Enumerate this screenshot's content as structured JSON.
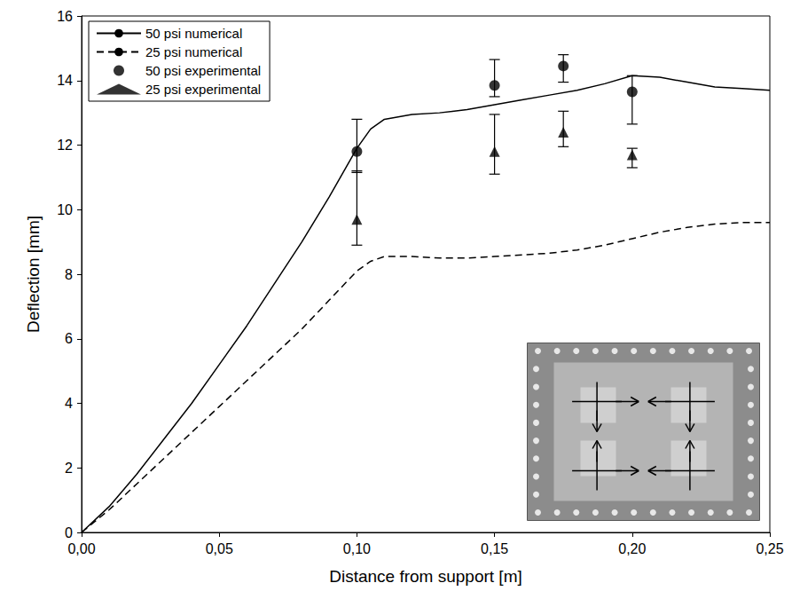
{
  "chart_data": {
    "type": "line",
    "x_label": "Distance from support [m]",
    "y_label": "Deflection [mm]",
    "xlim": [
      0,
      0.25
    ],
    "xticks": [
      {
        "value": 0,
        "label": "0,00"
      },
      {
        "value": 0.05,
        "label": "0,05"
      },
      {
        "value": 0.1,
        "label": "0,10"
      },
      {
        "value": 0.15,
        "label": "0,15"
      },
      {
        "value": 0.2,
        "label": "0,20"
      },
      {
        "value": 0.25,
        "label": "0,25"
      }
    ],
    "ylim": [
      0,
      16
    ],
    "yticks": [
      0,
      2,
      4,
      6,
      8,
      10,
      12,
      14,
      16
    ],
    "grid": false,
    "legend": "upper left",
    "series": [
      {
        "name": "50 psi numerical",
        "type": "line",
        "line_style": "solid",
        "color": "#000000",
        "x": [
          0,
          0.01,
          0.02,
          0.03,
          0.04,
          0.05,
          0.06,
          0.07,
          0.08,
          0.09,
          0.1,
          0.105,
          0.11,
          0.12,
          0.13,
          0.14,
          0.15,
          0.16,
          0.17,
          0.18,
          0.19,
          0.2,
          0.21,
          0.22,
          0.23,
          0.24,
          0.25
        ],
        "values": [
          0,
          0.8,
          1.8,
          2.9,
          4.0,
          5.2,
          6.4,
          7.7,
          9.0,
          10.4,
          11.9,
          12.5,
          12.8,
          12.95,
          13.0,
          13.1,
          13.25,
          13.4,
          13.55,
          13.7,
          13.9,
          14.15,
          14.1,
          13.95,
          13.8,
          13.75,
          13.7
        ]
      },
      {
        "name": "25 psi numerical",
        "type": "line",
        "line_style": "dashed",
        "color": "#000000",
        "x": [
          0,
          0.01,
          0.02,
          0.03,
          0.04,
          0.05,
          0.06,
          0.07,
          0.08,
          0.09,
          0.1,
          0.105,
          0.11,
          0.12,
          0.13,
          0.14,
          0.15,
          0.16,
          0.17,
          0.18,
          0.19,
          0.2,
          0.21,
          0.22,
          0.23,
          0.24,
          0.25
        ],
        "values": [
          0,
          0.7,
          1.5,
          2.3,
          3.1,
          3.9,
          4.7,
          5.5,
          6.3,
          7.2,
          8.1,
          8.4,
          8.55,
          8.55,
          8.5,
          8.5,
          8.55,
          8.6,
          8.65,
          8.75,
          8.9,
          9.1,
          9.3,
          9.45,
          9.55,
          9.6,
          9.6
        ]
      },
      {
        "name": "50 psi experimental",
        "type": "scatter",
        "marker": "circle",
        "color": "#000000",
        "x": [
          0.1,
          0.15,
          0.175,
          0.2
        ],
        "values": [
          11.8,
          13.85,
          14.45,
          13.65
        ],
        "error_low": [
          11.15,
          13.5,
          13.95,
          12.65
        ],
        "error_high": [
          12.8,
          14.65,
          14.8,
          14.15
        ]
      },
      {
        "name": "25 psi experimental",
        "type": "scatter",
        "marker": "triangle",
        "color": "#000000",
        "x": [
          0.1,
          0.15,
          0.175,
          0.2
        ],
        "values": [
          9.7,
          11.8,
          12.4,
          11.7
        ],
        "error_low": [
          8.9,
          11.1,
          11.95,
          11.3
        ],
        "error_high": [
          11.2,
          12.95,
          13.05,
          11.9
        ]
      }
    ]
  }
}
